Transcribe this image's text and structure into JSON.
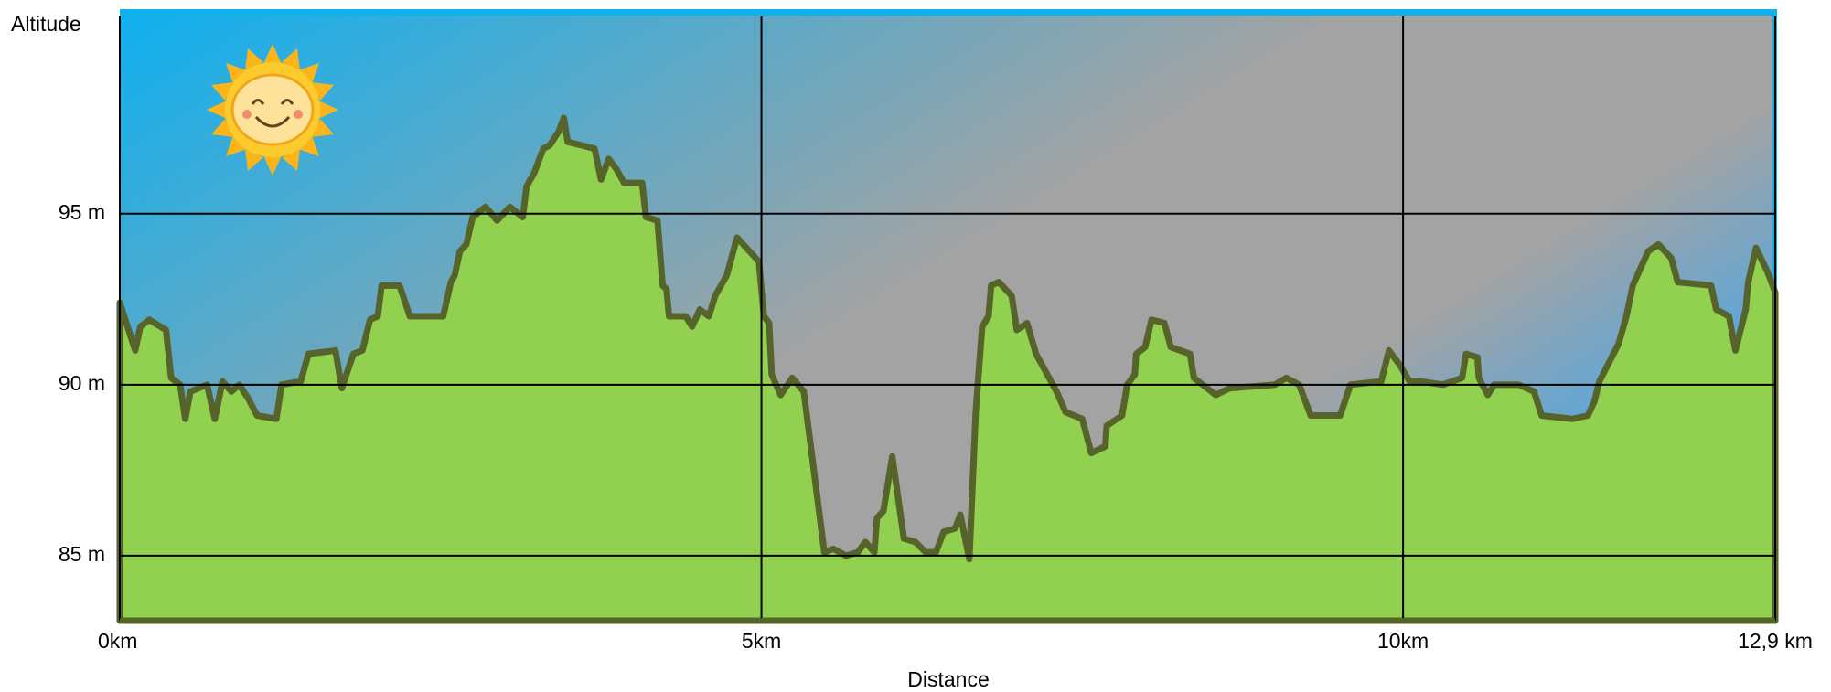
{
  "chart_data": {
    "type": "area",
    "ylabel": "Altitude",
    "xlabel": "Distance",
    "color": "#92d050",
    "line_color": "#56632b",
    "grid": true,
    "xlim": [
      0,
      12.9
    ],
    "ylim": [
      83.1,
      100.9
    ],
    "xticks": [
      {
        "value": 0,
        "label": "0km"
      },
      {
        "value": 5,
        "label": "5km"
      },
      {
        "value": 10,
        "label": "10km"
      },
      {
        "value": 12.9,
        "label": "12,9 km"
      }
    ],
    "yticks": [
      {
        "value": 85,
        "label": "85 m"
      },
      {
        "value": 90,
        "label": "90 m"
      },
      {
        "value": 95,
        "label": "95 m"
      }
    ],
    "x": [
      0,
      0.12,
      0.16,
      0.23,
      0.36,
      0.4,
      0.47,
      0.51,
      0.55,
      0.68,
      0.74,
      0.8,
      0.87,
      0.93,
      1.0,
      1.07,
      1.22,
      1.26,
      1.41,
      1.47,
      1.68,
      1.73,
      1.82,
      1.89,
      1.95,
      2.01,
      2.04,
      2.18,
      2.26,
      2.52,
      2.58,
      2.61,
      2.65,
      2.7,
      2.75,
      2.85,
      2.94,
      3.04,
      3.14,
      3.17,
      3.23,
      3.3,
      3.35,
      3.42,
      3.46,
      3.49,
      3.7,
      3.75,
      3.81,
      3.87,
      3.93,
      4.07,
      4.1,
      4.19,
      4.23,
      4.26,
      4.28,
      4.41,
      4.46,
      4.52,
      4.59,
      4.64,
      4.73,
      4.81,
      4.98,
      5.02,
      5.06,
      5.08,
      5.15,
      5.24,
      5.33,
      5.49,
      5.56,
      5.66,
      5.75,
      5.81,
      5.88,
      5.9,
      5.95,
      6.02,
      6.11,
      6.2,
      6.28,
      6.36,
      6.42,
      6.51,
      6.55,
      6.62,
      6.67,
      6.72,
      6.77,
      6.79,
      6.85,
      6.95,
      6.99,
      7.07,
      7.14,
      7.3,
      7.37,
      7.5,
      7.57,
      7.68,
      7.69,
      7.81,
      7.85,
      7.91,
      7.92,
      7.99,
      8.04,
      8.14,
      8.19,
      8.34,
      8.37,
      8.54,
      8.65,
      9.0,
      9.09,
      9.19,
      9.28,
      9.51,
      9.59,
      9.83,
      9.89,
      9.97,
      10.05,
      10.13,
      10.31,
      10.46,
      10.49,
      10.58,
      10.59,
      10.66,
      10.71,
      10.9,
      11.02,
      11.08,
      11.32,
      11.44,
      11.49,
      11.53,
      11.68,
      11.74,
      11.79,
      11.91,
      11.99,
      12.09,
      12.14,
      12.4,
      12.44,
      12.54,
      12.59,
      12.67,
      12.69,
      12.75,
      12.84,
      12.9
    ],
    "values": [
      92.4,
      91.0,
      91.7,
      91.9,
      91.6,
      90.2,
      90.0,
      89.0,
      89.8,
      90.0,
      89.0,
      90.1,
      89.8,
      90.0,
      89.6,
      89.1,
      89.0,
      90.0,
      90.1,
      90.9,
      91.0,
      89.9,
      90.9,
      91.0,
      91.9,
      92.0,
      92.9,
      92.9,
      92.0,
      92.0,
      93.0,
      93.2,
      93.9,
      94.1,
      94.9,
      95.2,
      94.8,
      95.2,
      94.9,
      95.8,
      96.2,
      96.9,
      97.0,
      97.4,
      97.8,
      97.1,
      96.9,
      96.0,
      96.6,
      96.3,
      95.9,
      95.9,
      94.9,
      94.8,
      92.9,
      92.8,
      92.0,
      92.0,
      91.7,
      92.2,
      92.0,
      92.6,
      93.2,
      94.3,
      93.6,
      92.0,
      91.8,
      90.3,
      89.7,
      90.2,
      89.8,
      85.1,
      85.2,
      85.0,
      85.1,
      85.4,
      85.1,
      86.1,
      86.3,
      87.9,
      85.5,
      85.4,
      85.1,
      85.1,
      85.7,
      85.8,
      86.2,
      84.9,
      89.2,
      91.7,
      92.0,
      92.9,
      93.0,
      92.6,
      91.6,
      91.8,
      90.9,
      89.8,
      89.2,
      89.0,
      88.0,
      88.2,
      88.8,
      89.1,
      90.0,
      90.3,
      90.9,
      91.1,
      91.9,
      91.8,
      91.1,
      90.9,
      90.2,
      89.7,
      89.9,
      90.0,
      90.2,
      90.0,
      89.1,
      89.1,
      90.0,
      90.1,
      91.0,
      90.6,
      90.1,
      90.1,
      90.0,
      90.2,
      90.9,
      90.8,
      90.2,
      89.7,
      90.0,
      90.0,
      89.8,
      89.1,
      89.0,
      89.1,
      89.5,
      90.1,
      91.2,
      92.0,
      92.9,
      93.9,
      94.1,
      93.7,
      93.0,
      92.9,
      92.2,
      92.0,
      91.0,
      92.2,
      93.0,
      94.0,
      93.3,
      92.7
    ]
  }
}
